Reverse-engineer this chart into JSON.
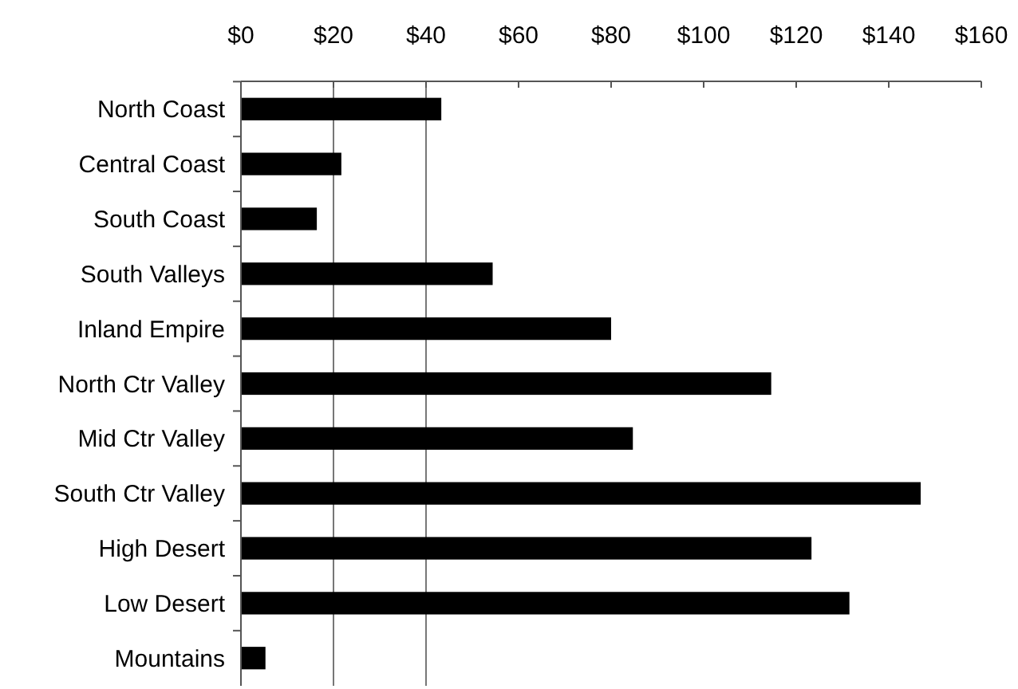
{
  "chart_data": {
    "type": "bar",
    "orientation": "horizontal",
    "categories": [
      "North Coast",
      "Central Coast",
      "South Coast",
      "South Valleys",
      "Inland Empire",
      "North Ctr Valley",
      "Mid Ctr Valley",
      "South Ctr Valley",
      "High Desert",
      "Low Desert",
      "Mountains"
    ],
    "values": [
      43.3,
      21.7,
      16.4,
      54.4,
      80,
      114.6,
      84.7,
      146.9,
      123.3,
      131.5,
      5.3
    ],
    "color": "#000000",
    "xlim": [
      0,
      160
    ],
    "xticks": [
      {
        "value": 0,
        "label": "$0"
      },
      {
        "value": 20,
        "label": "$20"
      },
      {
        "value": 40,
        "label": "$40"
      },
      {
        "value": 60,
        "label": "$60"
      },
      {
        "value": 80,
        "label": "$80"
      },
      {
        "value": 100,
        "label": "$100"
      },
      {
        "value": 120,
        "label": "$120"
      },
      {
        "value": 140,
        "label": "$140"
      },
      {
        "value": 160,
        "label": "$160"
      }
    ],
    "ref_lines": [
      {
        "axis": "x",
        "value": 20,
        "color": "#777777"
      },
      {
        "axis": "x",
        "value": 40,
        "color": "#777777"
      }
    ],
    "grid": false
  }
}
